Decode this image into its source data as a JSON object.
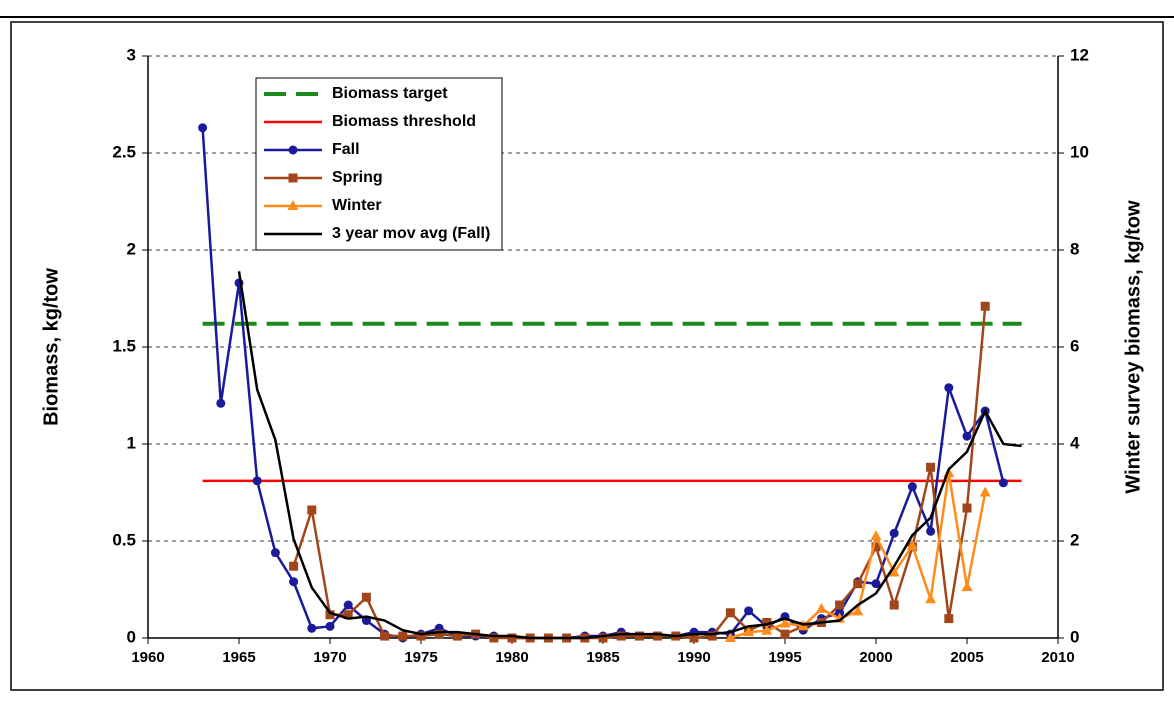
{
  "chart_data": {
    "type": "line",
    "y_label": "Biomass, kg/tow",
    "y2_label": "Winter survey biomass, kg/tow",
    "xlim": [
      1960,
      2010
    ],
    "xticks": [
      1960,
      1965,
      1970,
      1975,
      1980,
      1985,
      1990,
      1995,
      2000,
      2005,
      2010
    ],
    "ylim": [
      0,
      3
    ],
    "yticks": [
      0,
      0.5,
      1,
      1.5,
      2,
      2.5,
      3
    ],
    "y2lim": [
      0,
      12
    ],
    "y2ticks": [
      0,
      2,
      4,
      6,
      8,
      10,
      12
    ],
    "grid": true,
    "series": [
      {
        "name": "Biomass target",
        "color": "#1a8a1a",
        "dash": true,
        "x": [
          1963,
          2008
        ],
        "values": [
          1.62,
          1.62
        ]
      },
      {
        "name": "Biomass threshold",
        "color": "#ff0000",
        "x": [
          1963,
          2008
        ],
        "values": [
          0.81,
          0.81
        ]
      },
      {
        "name": "Fall",
        "color": "#1a1a9a",
        "marker": "circle",
        "x": [
          1963,
          1964,
          1965,
          1966,
          1967,
          1968,
          1969,
          1970,
          1971,
          1972,
          1973,
          1974,
          1975,
          1976,
          1977,
          1978,
          1979,
          1980,
          1981,
          1982,
          1983,
          1984,
          1985,
          1986,
          1987,
          1988,
          1989,
          1990,
          1991,
          1992,
          1993,
          1994,
          1995,
          1996,
          1997,
          1998,
          1999,
          2000,
          2001,
          2002,
          2003,
          2004,
          2005,
          2006,
          2007
        ],
        "values": [
          2.63,
          1.21,
          1.83,
          0.81,
          0.44,
          0.29,
          0.05,
          0.06,
          0.17,
          0.09,
          0.02,
          0.0,
          0.02,
          0.05,
          0.01,
          0.01,
          0.01,
          0.0,
          0.0,
          0.0,
          0.0,
          0.01,
          0.01,
          0.03,
          0.01,
          0.01,
          0.01,
          0.03,
          0.03,
          0.02,
          0.14,
          0.06,
          0.11,
          0.04,
          0.1,
          0.13,
          0.29,
          0.28,
          0.54,
          0.78,
          0.55,
          1.29,
          1.04,
          1.17,
          0.8
        ]
      },
      {
        "name": "Spring",
        "color": "#a0461a",
        "marker": "square",
        "x": [
          1968,
          1969,
          1970,
          1971,
          1972,
          1973,
          1974,
          1975,
          1976,
          1977,
          1978,
          1979,
          1980,
          1981,
          1982,
          1983,
          1984,
          1985,
          1986,
          1987,
          1988,
          1989,
          1990,
          1991,
          1992,
          1993,
          1994,
          1995,
          1996,
          1997,
          1998,
          1999,
          2000,
          2001,
          2002,
          2003,
          2004,
          2005,
          2006
        ],
        "values": [
          0.37,
          0.66,
          0.12,
          0.12,
          0.21,
          0.01,
          0.01,
          0.01,
          0.02,
          0.01,
          0.02,
          0.0,
          0.0,
          0.0,
          0.0,
          0.0,
          0.0,
          0.0,
          0.01,
          0.01,
          0.01,
          0.01,
          0.0,
          0.01,
          0.13,
          0.04,
          0.08,
          0.02,
          0.06,
          0.08,
          0.17,
          0.28,
          0.47,
          0.17,
          0.47,
          0.88,
          0.1,
          0.67,
          1.71
        ]
      },
      {
        "name": "Winter",
        "color": "#ff8c1a",
        "marker": "triangle",
        "axis": "y2",
        "x": [
          1992,
          1993,
          1994,
          1995,
          1996,
          1997,
          1998,
          1999,
          2000,
          2001,
          2002,
          2003,
          2004,
          2005,
          2006
        ],
        "values": [
          0.0,
          0.12,
          0.15,
          0.3,
          0.25,
          0.6,
          0.4,
          0.55,
          2.1,
          1.35,
          1.9,
          0.8,
          3.4,
          1.05,
          3.0
        ]
      },
      {
        "name": "3 year mov avg (Fall)",
        "color": "#000000",
        "x": [
          1965,
          1966,
          1967,
          1968,
          1969,
          1970,
          1971,
          1972,
          1973,
          1974,
          1975,
          1976,
          1977,
          1978,
          1979,
          1980,
          1981,
          1982,
          1983,
          1984,
          1985,
          1986,
          1987,
          1988,
          1989,
          1990,
          1991,
          1992,
          1993,
          1994,
          1995,
          1996,
          1997,
          1998,
          1999,
          2000,
          2001,
          2002,
          2003,
          2004,
          2005,
          2006,
          2007,
          2008
        ],
        "values": [
          1.89,
          1.28,
          1.02,
          0.51,
          0.26,
          0.13,
          0.1,
          0.11,
          0.09,
          0.04,
          0.02,
          0.03,
          0.03,
          0.02,
          0.01,
          0.01,
          0.0,
          0.0,
          0.0,
          0.0,
          0.01,
          0.02,
          0.02,
          0.02,
          0.01,
          0.02,
          0.02,
          0.03,
          0.06,
          0.07,
          0.1,
          0.07,
          0.08,
          0.09,
          0.17,
          0.23,
          0.37,
          0.53,
          0.62,
          0.87,
          0.96,
          1.17,
          1.0,
          0.99
        ]
      }
    ]
  }
}
